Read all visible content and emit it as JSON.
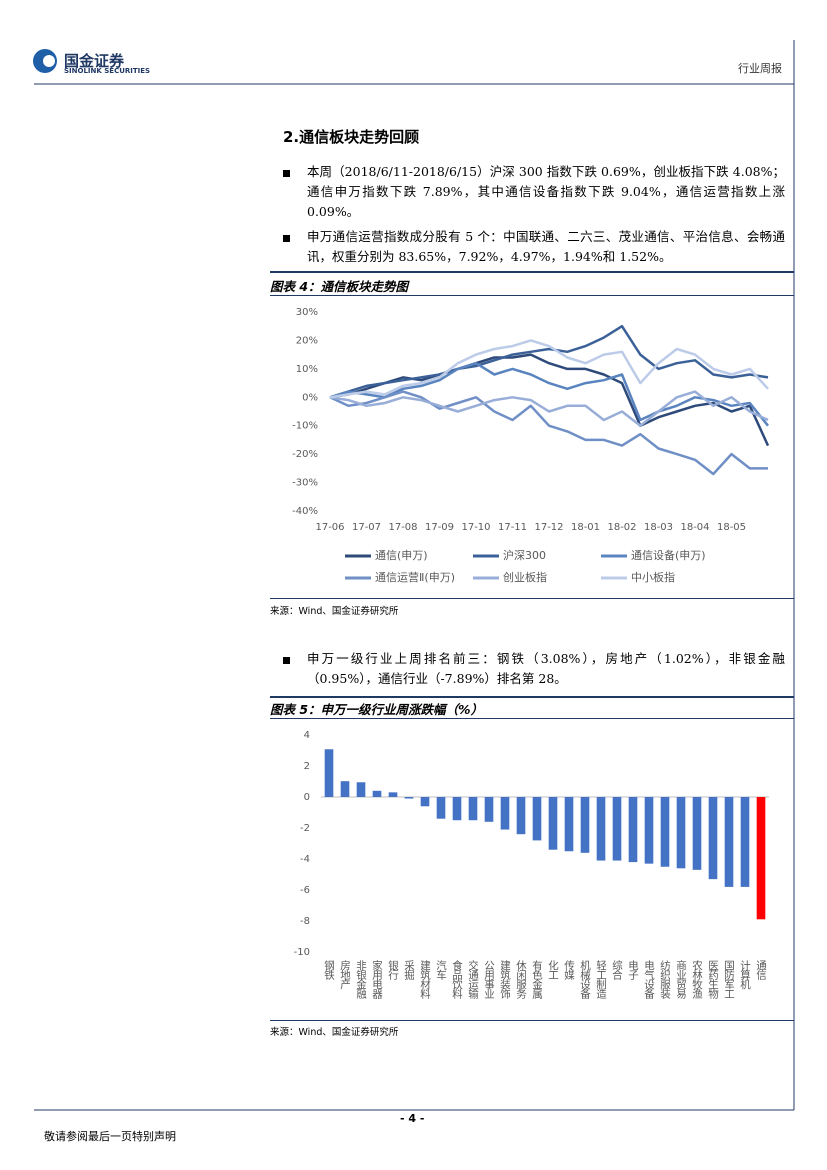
{
  "header": {
    "logo_cn": "国金证券",
    "logo_en": "SINOLINK SECURITIES",
    "report_type": "行业周报"
  },
  "section": {
    "title": "2.通信板块走势回顾",
    "bullets": [
      "本周（2018/6/11-2018/6/15）沪深 300 指数下跌 0.69%，创业板指下跌 4.08%；通信申万指数下跌 7.89%，其中通信设备指数下跌 9.04%，通信运营指数上涨 0.09%。",
      "申万通信运营指数成分股有 5 个：中国联通、二六三、茂业通信、平治信息、会畅通讯，权重分别为 83.65%，7.92%，4.97%，1.94%和 1.52%。",
      "申万一级行业上周排名前三：钢铁（3.08%），房地产（1.02%），非银金融（0.95%），通信行业（-7.89%）排名第 28。"
    ]
  },
  "chart_data": [
    {
      "type": "line",
      "title": "图表 4：通信板块走势图",
      "source": "来源：Wind、国金证券研究所",
      "categories": [
        "17-06",
        null,
        "17-07",
        null,
        "17-08",
        null,
        "17-09",
        null,
        "17-10",
        null,
        "17-11",
        null,
        "17-12",
        null,
        "18-01",
        null,
        "18-02",
        null,
        "18-03",
        null,
        "18-04",
        null,
        "18-05",
        null,
        null
      ],
      "ylim": [
        -40,
        30
      ],
      "yticks": [
        {
          "value": 30,
          "label": "30%"
        },
        {
          "value": 20,
          "label": "20%"
        },
        {
          "value": 10,
          "label": "10%"
        },
        {
          "value": 0,
          "label": "0%"
        },
        {
          "value": -10,
          "label": "-10%"
        },
        {
          "value": -20,
          "label": "-20%"
        },
        {
          "value": -30,
          "label": "-30%"
        },
        {
          "value": -40,
          "label": "-40%"
        }
      ],
      "legend": "bottom",
      "series": [
        {
          "name": "通信(申万)",
          "color": "#2e4a7a",
          "values": [
            0,
            1,
            3,
            5,
            7,
            6,
            8,
            10,
            12,
            14,
            14,
            15,
            12,
            10,
            10,
            8,
            5,
            -10,
            -7,
            -5,
            -3,
            -2,
            -5,
            -3,
            -17
          ]
        },
        {
          "name": "沪深300",
          "color": "#3b6198",
          "values": [
            0,
            2,
            4,
            5,
            6,
            7,
            8,
            10,
            11,
            13,
            15,
            16,
            17,
            16,
            18,
            21,
            25,
            15,
            10,
            12,
            13,
            8,
            7,
            8,
            7
          ]
        },
        {
          "name": "通信设备(申万)",
          "color": "#5a84bf",
          "values": [
            0,
            2,
            1,
            0,
            3,
            4,
            6,
            10,
            12,
            8,
            10,
            8,
            5,
            3,
            5,
            6,
            8,
            -8,
            -5,
            -3,
            0,
            -1,
            -3,
            -2,
            -10
          ]
        },
        {
          "name": "通信运营Ⅱ(申万)",
          "color": "#6f8fc6",
          "values": [
            0,
            -3,
            -2,
            0,
            2,
            0,
            -4,
            -2,
            0,
            -5,
            -8,
            -3,
            -10,
            -12,
            -15,
            -15,
            -17,
            -13,
            -18,
            -20,
            -22,
            -27,
            -20,
            -25,
            -25
          ]
        },
        {
          "name": "创业板指",
          "color": "#98aed8",
          "values": [
            0,
            -1,
            -3,
            -2,
            0,
            -1,
            -3,
            -5,
            -3,
            -1,
            0,
            -1,
            -5,
            -3,
            -3,
            -8,
            -5,
            -10,
            -5,
            0,
            2,
            -3,
            0,
            -5,
            -8
          ]
        },
        {
          "name": "中小板指",
          "color": "#bccbe8",
          "values": [
            0,
            1,
            2,
            1,
            4,
            5,
            7,
            12,
            15,
            17,
            18,
            20,
            18,
            14,
            12,
            15,
            16,
            5,
            12,
            17,
            15,
            10,
            8,
            10,
            3
          ]
        }
      ]
    },
    {
      "type": "bar",
      "title": "图表 5：申万一级行业周涨跌幅（%）",
      "source": "来源：Wind、国金证券研究所",
      "categories": [
        "钢铁",
        "房地产",
        "非银金融",
        "家用电器",
        "银行",
        "采掘",
        "建筑材料",
        "汽车",
        "食品饮料",
        "交通运输",
        "公用事业",
        "建筑装饰",
        "休闲服务",
        "有色金属",
        "化工",
        "传媒",
        "机械设备",
        "轻工制造",
        "综合",
        "电子",
        "电气设备",
        "纺织服装",
        "商业贸易",
        "农林牧渔",
        "医药生物",
        "国防军工",
        "计算机",
        "通信"
      ],
      "values": [
        3.08,
        1.02,
        0.95,
        0.4,
        0.3,
        -0.1,
        -0.6,
        -1.4,
        -1.5,
        -1.5,
        -1.6,
        -2.1,
        -2.4,
        -2.8,
        -3.4,
        -3.5,
        -3.6,
        -4.1,
        -4.1,
        -4.2,
        -4.3,
        -4.5,
        -4.6,
        -4.7,
        -5.3,
        -5.8,
        -5.8,
        -7.89
      ],
      "colors": [
        "#4472c4",
        "#4472c4",
        "#4472c4",
        "#4472c4",
        "#4472c4",
        "#4472c4",
        "#4472c4",
        "#4472c4",
        "#4472c4",
        "#4472c4",
        "#4472c4",
        "#4472c4",
        "#4472c4",
        "#4472c4",
        "#4472c4",
        "#4472c4",
        "#4472c4",
        "#4472c4",
        "#4472c4",
        "#4472c4",
        "#4472c4",
        "#4472c4",
        "#4472c4",
        "#4472c4",
        "#4472c4",
        "#4472c4",
        "#4472c4",
        "#ff0000"
      ],
      "ylim": [
        -10,
        4
      ],
      "yticks": [
        4,
        2,
        0,
        -2,
        -4,
        -6,
        -8,
        -10
      ]
    }
  ],
  "footer": {
    "page": "- 4 -",
    "disclaimer": "敬请参阅最后一页特别声明"
  }
}
